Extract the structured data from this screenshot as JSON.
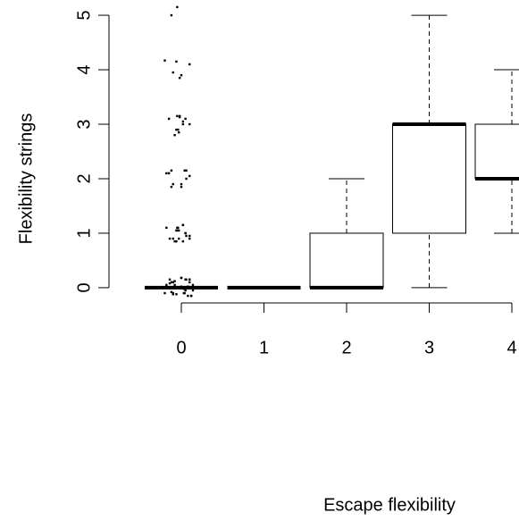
{
  "chart_data": {
    "type": "box",
    "x_label": "Escape flexibility",
    "y_label": "Flexibility strings",
    "categories": [
      "0",
      "1",
      "2",
      "3",
      "4"
    ],
    "ylim": [
      -0.28,
      5.28
    ],
    "yticks": [
      0,
      1,
      2,
      3,
      4,
      5
    ],
    "color": "#000000",
    "boxes": [
      {
        "min": 0,
        "q1": 0,
        "median": 0,
        "q3": 0,
        "max": 0
      },
      {
        "min": 0,
        "q1": 0,
        "median": 0,
        "q3": 0,
        "max": 0
      },
      {
        "min": 0,
        "q1": 0,
        "median": 0,
        "q3": 1,
        "max": 2
      },
      {
        "min": 0,
        "q1": 1,
        "median": 3,
        "q3": 3,
        "max": 5
      },
      {
        "min": 1,
        "q1": 2,
        "median": 2,
        "q3": 3,
        "max": 4
      }
    ],
    "points": {
      "x": [
        -0.02,
        -0.04,
        -0.03,
        0.1,
        -0.1,
        0.05,
        -0.06,
        0.14,
        0.0,
        -0.12,
        0.08,
        0.12,
        -0.08,
        0.03,
        -0.14,
        0.02,
        -0.03,
        0.06,
        0.1,
        -0.05,
        0.1,
        -0.12,
        0.04,
        -0.08,
        0.14,
        0.0,
        -0.1,
        0.08,
        -0.2,
        -0.05,
        0.02,
        -0.08,
        -0.12,
        -0.15,
        0.0,
        -0.18,
        0.05,
        -0.1,
        -0.06,
        -0.14,
        0.1,
        0.03,
        -0.18,
        0.08,
        0.0,
        -0.05,
        0.1,
        0.0,
        -0.02,
        0.05,
        0.1,
        -0.06,
        -0.03,
        0.06,
        0.1,
        -0.12,
        0.02,
        -0.05,
        0.1,
        -0.08,
        0.05,
        -0.2,
        0.12,
        -0.12,
        -0.06,
        -0.1,
        -0.02,
        -0.15,
        0.02,
        -0.04,
        0.04,
        -0.18,
        0.06,
        -0.1,
        0.0,
        -0.06,
        0.05,
        -0.14,
        0.02,
        0.06,
        -0.1
      ],
      "y": [
        3.13,
        1.1,
        0.9,
        0.15,
        0.1,
        -0.05,
        -0.12,
        0.05,
        0.18,
        -0.08,
        0.02,
        -0.15,
        0.12,
        -0.02,
        0.08,
        1.15,
        1.05,
        0.95,
        0.9,
        1.1,
        0.15,
        0.1,
        -0.1,
        0.05,
        -0.05,
        0.18,
        -0.12,
        0.02,
        4.17,
        3.15,
        3.05,
        2.8,
        2.15,
        2.1,
        1.9,
        1.1,
        1.0,
        0.9,
        0.85,
        0.15,
        0.1,
        -0.1,
        0.05,
        -0.15,
        0.02,
        5.15,
        4.1,
        3.9,
        3.15,
        3.1,
        3.0,
        2.9,
        2.85,
        2.15,
        2.05,
        1.85,
        1.15,
        1.05,
        0.95,
        0.85,
        0.15,
        -0.1,
        -0.15,
        5.0,
        4.15,
        3.95,
        3.85,
        3.1,
        3.0,
        2.9,
        2.15,
        2.1,
        2.0,
        1.9,
        1.85,
        1.05,
        1.0,
        0.9,
        0.85,
        0.15,
        -0.1
      ]
    }
  }
}
